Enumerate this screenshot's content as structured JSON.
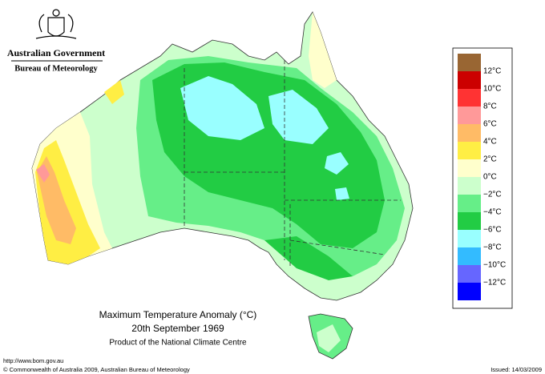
{
  "header": {
    "government": "Australian Government",
    "bureau": "Bureau of Meteorology"
  },
  "map": {
    "title": "Maximum Temperature Anomaly (°C)",
    "date": "20th September 1969",
    "product": "Product of the National Climate Centre"
  },
  "legend": {
    "colors": [
      "#996633",
      "#cc0000",
      "#ff3333",
      "#ff9999",
      "#ffbb66",
      "#ffee44",
      "#ffffcc",
      "#ccffcc",
      "#66ee88",
      "#22cc44",
      "#99ffff",
      "#33bbff",
      "#6666ff",
      "#0000ff"
    ],
    "labels": [
      "12°C",
      "10°C",
      "8°C",
      "6°C",
      "4°C",
      "2°C",
      "0°C",
      "−2°C",
      "−4°C",
      "−6°C",
      "−8°C",
      "−10°C",
      "−12°C"
    ]
  },
  "footer": {
    "url": "http://www.bom.gov.au",
    "copyright": "© Commonwealth of Australia 2009, Australian Bureau of Meteorology",
    "issued": "Issued: 14/03/2009"
  }
}
